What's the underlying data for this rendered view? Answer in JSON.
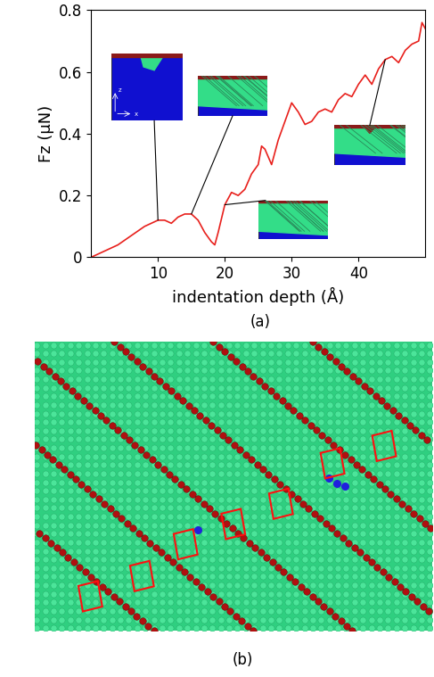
{
  "chart_data": {
    "type": "line",
    "x_label": "indentation depth (Å)",
    "y_label": "Fz (μN)",
    "x": [
      0,
      2,
      4,
      6,
      8,
      10,
      11,
      12,
      13,
      14,
      15,
      16,
      17,
      18,
      18.5,
      19,
      20,
      21,
      22,
      23,
      24,
      25,
      25.5,
      26,
      27,
      28,
      29,
      30,
      31,
      32,
      33,
      34,
      35,
      36,
      37,
      38,
      39,
      40,
      41,
      42,
      43,
      44,
      45,
      46,
      47,
      48,
      49,
      49.5,
      50
    ],
    "values": [
      0,
      0.02,
      0.04,
      0.07,
      0.1,
      0.12,
      0.12,
      0.11,
      0.13,
      0.14,
      0.14,
      0.12,
      0.08,
      0.05,
      0.04,
      0.08,
      0.17,
      0.21,
      0.2,
      0.22,
      0.27,
      0.3,
      0.36,
      0.35,
      0.3,
      0.38,
      0.44,
      0.5,
      0.47,
      0.43,
      0.44,
      0.47,
      0.48,
      0.47,
      0.51,
      0.53,
      0.52,
      0.56,
      0.59,
      0.56,
      0.61,
      0.64,
      0.65,
      0.63,
      0.67,
      0.69,
      0.7,
      0.76,
      0.74
    ],
    "color": "#e8201c",
    "xlim": [
      0,
      50
    ],
    "xticks": [
      10,
      20,
      30,
      40
    ],
    "ylim": [
      0,
      0.8
    ],
    "yticks": [
      0,
      0.2,
      0.4,
      0.6,
      0.8
    ],
    "annotations": [
      "(a)",
      "z",
      "x"
    ]
  },
  "figure_b": {
    "label": "(b)"
  }
}
